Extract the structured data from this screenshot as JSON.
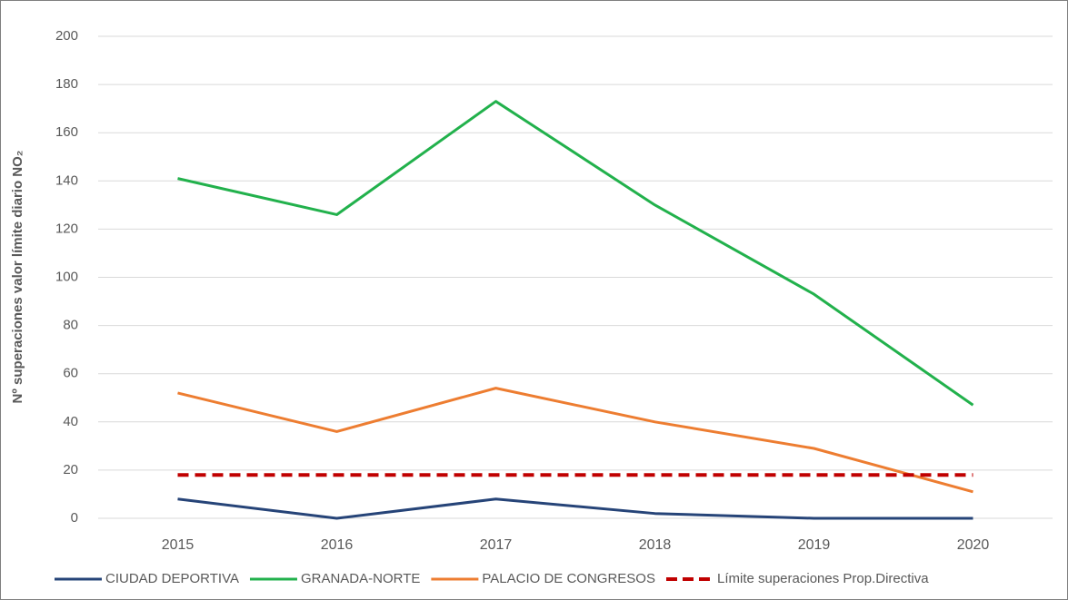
{
  "chart_data": {
    "type": "line",
    "y_label": "Nº superaciones valor límite diario NO₂",
    "categories": [
      "2015",
      "2016",
      "2017",
      "2018",
      "2019",
      "2020"
    ],
    "series": [
      {
        "name": "CIUDAD DEPORTIVA",
        "color": "#264478",
        "values": [
          8,
          0,
          8,
          2,
          0,
          0
        ]
      },
      {
        "name": "GRANADA-NORTE",
        "color": "#22b14c",
        "values": [
          141,
          126,
          173,
          130,
          93,
          47
        ]
      },
      {
        "name": "PALACIO DE CONGRESOS",
        "color": "#ed7d31",
        "values": [
          52,
          36,
          54,
          40,
          29,
          11
        ]
      },
      {
        "name": "Límite superaciones Prop.Directiva",
        "color": "#c00000",
        "dashed": true,
        "values": [
          18,
          18,
          18,
          18,
          18,
          18
        ]
      }
    ],
    "ylim": [
      0,
      200
    ],
    "yticks": [
      0,
      20,
      40,
      60,
      80,
      100,
      120,
      140,
      160,
      180,
      200
    ],
    "grid": true
  }
}
